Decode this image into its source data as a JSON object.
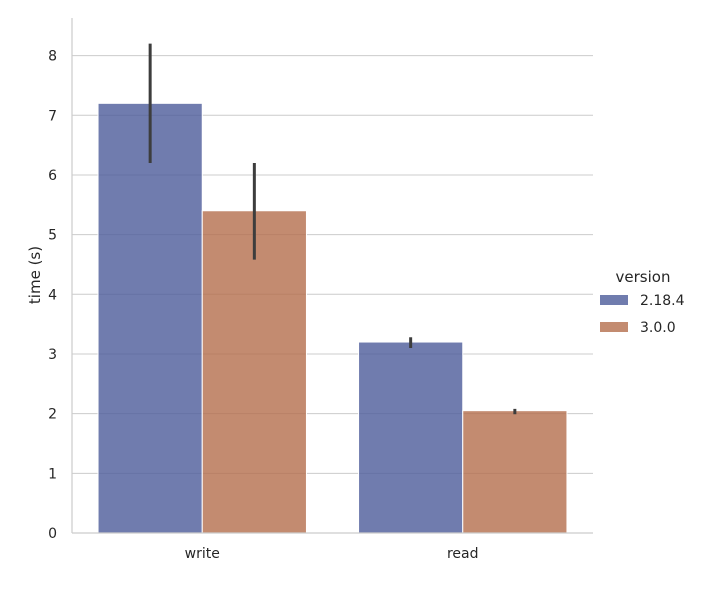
{
  "chart_data": {
    "type": "bar",
    "categories": [
      "write",
      "read"
    ],
    "series": [
      {
        "name": "2.18.4",
        "values": [
          7.2,
          3.2
        ],
        "ci": [
          [
            6.2,
            8.2
          ],
          [
            3.1,
            3.28
          ]
        ],
        "color": "#4c5b9a"
      },
      {
        "name": "3.0.0",
        "values": [
          5.4,
          2.05
        ],
        "ci": [
          [
            4.58,
            6.2
          ],
          [
            1.99,
            2.08
          ]
        ],
        "color": "#b46e4c"
      }
    ],
    "xlabel": "",
    "ylabel": "time (s)",
    "ylim": [
      0,
      8.63
    ],
    "yticks": [
      0,
      1,
      2,
      3,
      4,
      5,
      6,
      7,
      8
    ],
    "grid": "horizontal",
    "legend": {
      "title": "version",
      "placement": "right"
    }
  }
}
